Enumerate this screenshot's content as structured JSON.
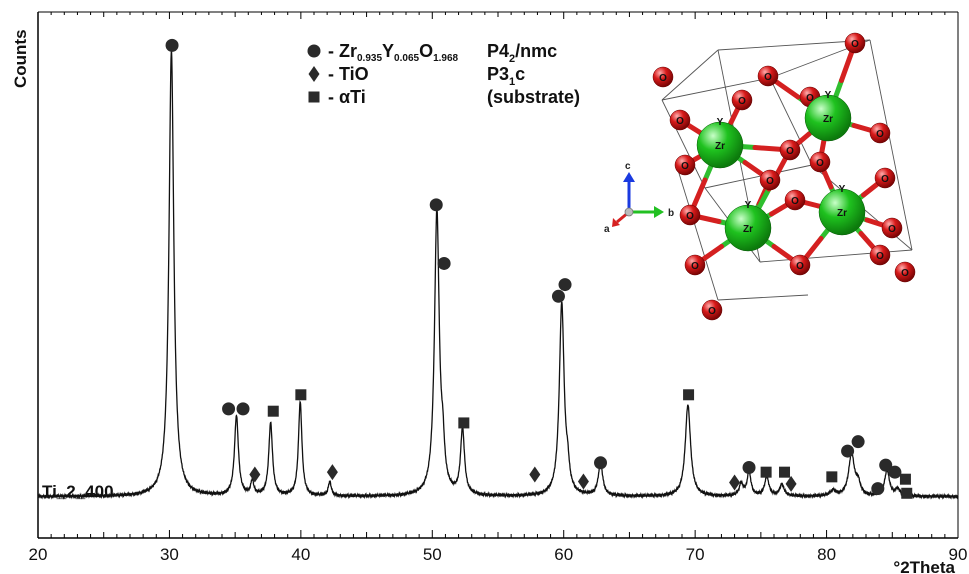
{
  "chart_data": {
    "type": "line",
    "title": "",
    "xlabel": "°2Theta",
    "ylabel": "Counts",
    "xlim": [
      20,
      90
    ],
    "x_ticks": [
      20,
      30,
      40,
      50,
      60,
      70,
      80,
      90
    ],
    "grid": false,
    "sample_label": "Ti_2_400",
    "baseline": 0.018,
    "peaks": [
      {
        "x": 30.15,
        "height": 0.95,
        "width": 0.22
      },
      {
        "x": 35.1,
        "height": 0.17,
        "width": 0.18
      },
      {
        "x": 36.3,
        "height": 0.03,
        "width": 0.14
      },
      {
        "x": 37.7,
        "height": 0.155,
        "width": 0.17
      },
      {
        "x": 39.95,
        "height": 0.2,
        "width": 0.16
      },
      {
        "x": 42.2,
        "height": 0.03,
        "width": 0.14
      },
      {
        "x": 50.35,
        "height": 0.605,
        "width": 0.22
      },
      {
        "x": 50.8,
        "height": 0.07,
        "width": 0.15
      },
      {
        "x": 52.3,
        "height": 0.14,
        "width": 0.18
      },
      {
        "x": 59.85,
        "height": 0.41,
        "width": 0.22
      },
      {
        "x": 60.3,
        "height": 0.04,
        "width": 0.15
      },
      {
        "x": 62.8,
        "height": 0.07,
        "width": 0.2
      },
      {
        "x": 69.45,
        "height": 0.195,
        "width": 0.24
      },
      {
        "x": 73.5,
        "height": 0.025,
        "width": 0.18
      },
      {
        "x": 74.1,
        "height": 0.05,
        "width": 0.18
      },
      {
        "x": 75.45,
        "height": 0.04,
        "width": 0.2
      },
      {
        "x": 76.6,
        "height": 0.025,
        "width": 0.2
      },
      {
        "x": 80.5,
        "height": 0.012,
        "width": 0.25
      },
      {
        "x": 81.9,
        "height": 0.09,
        "width": 0.26
      },
      {
        "x": 82.4,
        "height": 0.025,
        "width": 0.2
      },
      {
        "x": 84.6,
        "height": 0.055,
        "width": 0.22
      },
      {
        "x": 85.4,
        "height": 0.015,
        "width": 0.2
      }
    ],
    "series": [
      {
        "name": "Zr0.935Y0.065O1.968",
        "phase": "P4₂/nmc",
        "marker": "circle",
        "positions": [
          {
            "x": 30.2,
            "y": 0.98
          },
          {
            "x": 34.5,
            "y": 0.205
          },
          {
            "x": 35.6,
            "y": 0.205
          },
          {
            "x": 50.3,
            "y": 0.64
          },
          {
            "x": 50.9,
            "y": 0.515
          },
          {
            "x": 59.6,
            "y": 0.445
          },
          {
            "x": 60.1,
            "y": 0.47
          },
          {
            "x": 62.8,
            "y": 0.09
          },
          {
            "x": 74.1,
            "y": 0.08
          },
          {
            "x": 81.6,
            "y": 0.115
          },
          {
            "x": 82.4,
            "y": 0.135
          },
          {
            "x": 83.9,
            "y": 0.035
          },
          {
            "x": 84.5,
            "y": 0.085
          },
          {
            "x": 85.2,
            "y": 0.07
          }
        ]
      },
      {
        "name": "TiO",
        "phase": "P3₁c",
        "marker": "diamond",
        "positions": [
          {
            "x": 36.5,
            "y": 0.065
          },
          {
            "x": 42.4,
            "y": 0.07
          },
          {
            "x": 57.8,
            "y": 0.065
          },
          {
            "x": 61.5,
            "y": 0.05
          },
          {
            "x": 73.0,
            "y": 0.048
          },
          {
            "x": 77.3,
            "y": 0.045
          }
        ]
      },
      {
        "name": "αTi",
        "phase": "(substrate)",
        "marker": "square",
        "positions": [
          {
            "x": 37.9,
            "y": 0.2
          },
          {
            "x": 40.0,
            "y": 0.235
          },
          {
            "x": 52.4,
            "y": 0.175
          },
          {
            "x": 69.5,
            "y": 0.235
          },
          {
            "x": 75.4,
            "y": 0.07
          },
          {
            "x": 76.8,
            "y": 0.07
          },
          {
            "x": 80.4,
            "y": 0.06
          },
          {
            "x": 86.0,
            "y": 0.055
          },
          {
            "x": 86.1,
            "y": 0.025
          }
        ]
      }
    ]
  },
  "legend": {
    "items": [
      {
        "prefix": "- ",
        "formula": [
          {
            "t": "Zr",
            "sub": false
          },
          {
            "t": "0.935",
            "sub": true
          },
          {
            "t": "Y",
            "sub": false
          },
          {
            "t": "0.065",
            "sub": true
          },
          {
            "t": "O",
            "sub": false
          },
          {
            "t": "1.968",
            "sub": true
          }
        ],
        "phase": [
          {
            "t": "P4",
            "sub": false
          },
          {
            "t": "2",
            "sub": true
          },
          {
            "t": "/nmc",
            "sub": false
          }
        ]
      },
      {
        "prefix": "- ",
        "formula": [
          {
            "t": "TiO",
            "sub": false
          }
        ],
        "phase": [
          {
            "t": "P3",
            "sub": false
          },
          {
            "t": "1",
            "sub": true
          },
          {
            "t": "c",
            "sub": false
          }
        ]
      },
      {
        "prefix": "- ",
        "formula": [
          {
            "t": "αTi",
            "sub": false
          }
        ],
        "phase": [
          {
            "t": "(substrate)",
            "sub": false
          }
        ]
      }
    ]
  },
  "inset": {
    "zr_label": "Zr",
    "y_label": "Y",
    "o_label": "O",
    "axes": {
      "a": "a",
      "b": "b",
      "c": "c"
    },
    "colors": {
      "zr": "#1fc21f",
      "o": "#d81a1a",
      "bond_green": "#2fbf2f",
      "bond_red": "#d42020"
    }
  },
  "colors": {
    "line": "#111111",
    "marker": "#2a2a2a"
  }
}
